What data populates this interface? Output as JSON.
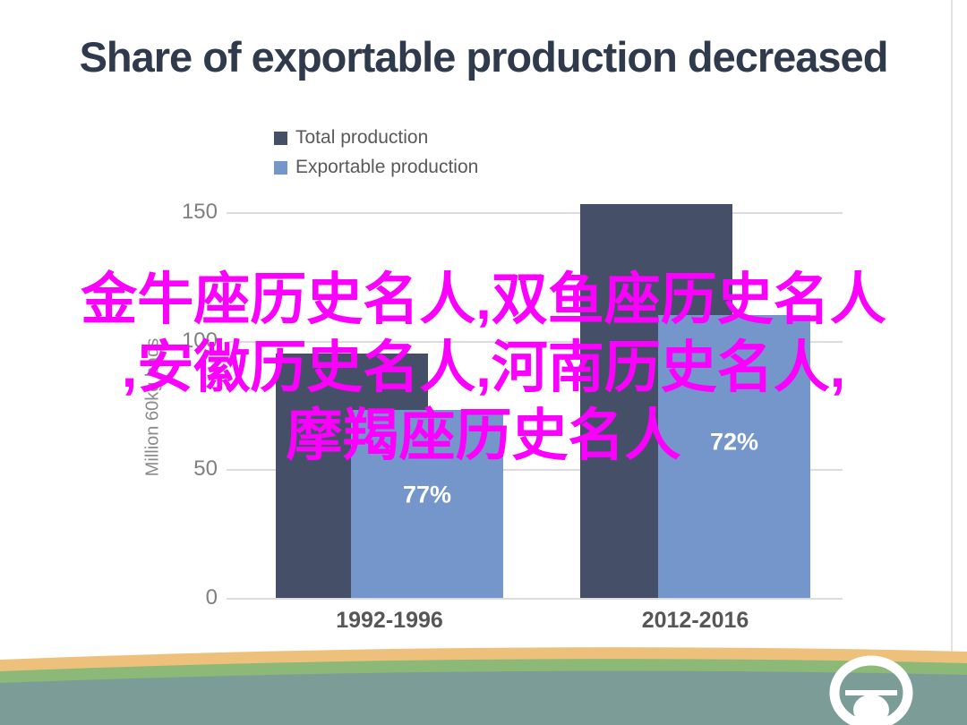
{
  "page": {
    "background": "#ffffff",
    "accent_magenta": "#fb00ff"
  },
  "chart_data": {
    "type": "bar",
    "title": "Share of exportable production decreased",
    "categories": [
      "1992-1996",
      "2012-2016"
    ],
    "series": [
      {
        "name": "Total production",
        "color": "#455068",
        "values": [
          95,
          153
        ]
      },
      {
        "name": "Exportable production",
        "color": "#7496cb",
        "values": [
          73,
          110
        ],
        "data_labels": [
          "77%",
          "72%"
        ]
      }
    ],
    "ylabel": "Million 60kg bags",
    "yticks": [
      0,
      50,
      100,
      150
    ],
    "ylim": [
      0,
      150
    ],
    "grid": true,
    "legend_position": "top-left",
    "bar_style": "overlapped-pairs"
  },
  "watermark": {
    "color": "#fb00ff",
    "lines": [
      "金牛座历史名人,双鱼座历史名人",
      ",安徽历史名人,河南历史名人,",
      "摩羯座历史名人"
    ]
  },
  "footer": {
    "band_colors": {
      "orange": "#edc17b",
      "green": "#8cb878",
      "teal": "#7b9c97"
    },
    "logo": "ring-dome-logo",
    "logo_color": "#ffffff"
  }
}
